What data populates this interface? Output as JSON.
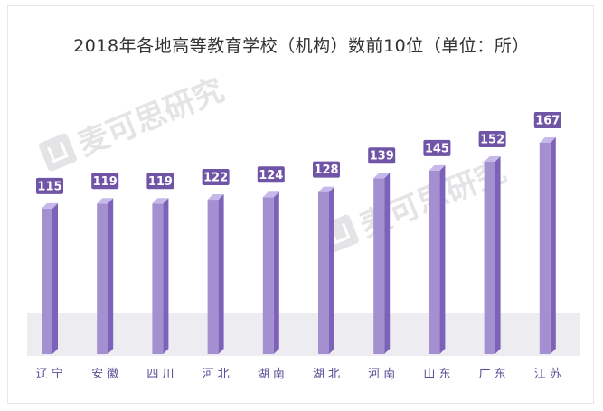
{
  "chart_data": {
    "type": "bar",
    "title": "2018年各地高等教育学校（机构）数前10位（单位：所）",
    "categories": [
      "辽 宁",
      "安 徽",
      "四 川",
      "河 北",
      "湖 南",
      "湖 北",
      "河 南",
      "山 东",
      "广 东",
      "江 苏"
    ],
    "values": [
      115,
      119,
      119,
      122,
      124,
      128,
      139,
      145,
      152,
      167
    ],
    "ylim": [
      0,
      170
    ],
    "xlabel": "",
    "ylabel": "",
    "grid": false
  },
  "colors": {
    "bar_front": "#a48fd0",
    "bar_side": "#7c62b8",
    "bar_top": "#c7b8ea",
    "label_bg": "#7054a6",
    "label_text": "#ffffff",
    "axis_label": "#5a4a96",
    "floor": "#ededf1"
  },
  "watermark": "麦可思研究"
}
